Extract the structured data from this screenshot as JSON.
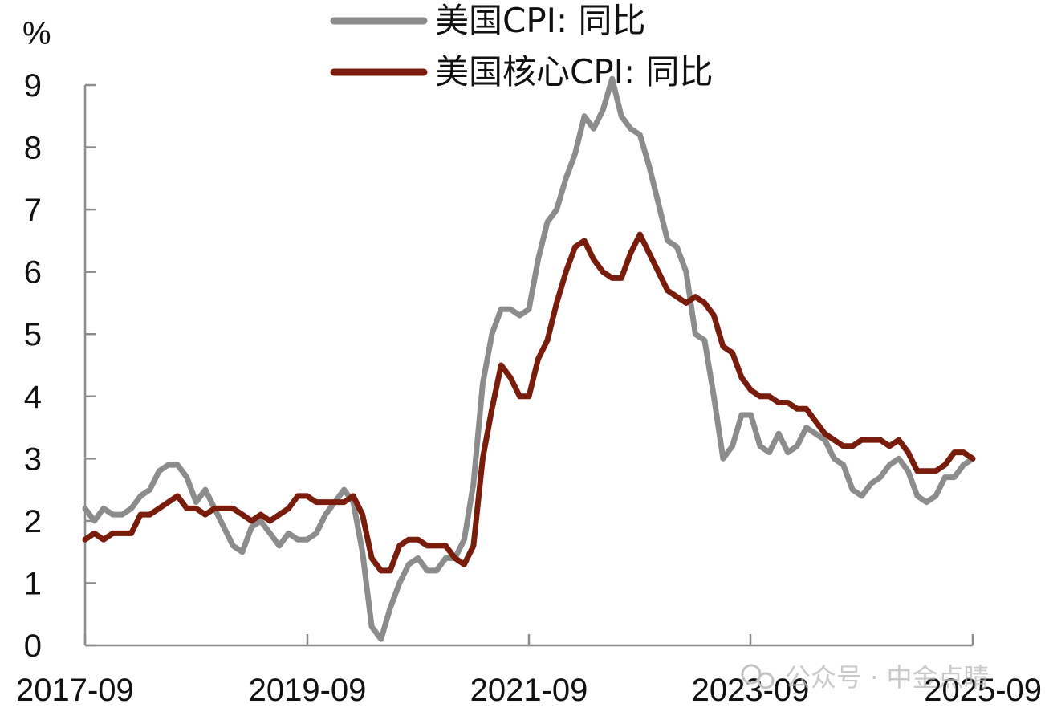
{
  "chart_data": {
    "type": "line",
    "title": "",
    "ylabel": "%",
    "ylim": [
      0,
      9
    ],
    "yticks": [
      "0",
      "1",
      "2",
      "3",
      "4",
      "5",
      "6",
      "7",
      "8",
      "9"
    ],
    "xtick_labels": [
      "2017-09",
      "2019-09",
      "2021-09",
      "2023-09",
      "2025-09"
    ],
    "x_start": "2017-09",
    "x_end": "2025-09",
    "grid": false,
    "legend_position": "top-center",
    "series": [
      {
        "name": "美国CPI: 同比",
        "color": "#8c8c8c",
        "values": [
          2.2,
          2.0,
          2.2,
          2.1,
          2.1,
          2.2,
          2.4,
          2.5,
          2.8,
          2.9,
          2.9,
          2.7,
          2.3,
          2.5,
          2.2,
          1.9,
          1.6,
          1.5,
          1.9,
          2.0,
          1.8,
          1.6,
          1.8,
          1.7,
          1.7,
          1.8,
          2.1,
          2.3,
          2.5,
          2.3,
          1.5,
          0.3,
          0.1,
          0.6,
          1.0,
          1.3,
          1.4,
          1.2,
          1.2,
          1.4,
          1.4,
          1.7,
          2.6,
          4.2,
          5.0,
          5.4,
          5.4,
          5.3,
          5.4,
          6.2,
          6.8,
          7.0,
          7.5,
          7.9,
          8.5,
          8.3,
          8.6,
          9.1,
          8.5,
          8.3,
          8.2,
          7.7,
          7.1,
          6.5,
          6.4,
          6.0,
          5.0,
          4.9,
          4.0,
          3.0,
          3.2,
          3.7,
          3.7,
          3.2,
          3.1,
          3.4,
          3.1,
          3.2,
          3.5,
          3.4,
          3.3,
          3.0,
          2.9,
          2.5,
          2.4,
          2.6,
          2.7,
          2.9,
          3.0,
          2.8,
          2.4,
          2.3,
          2.4,
          2.7,
          2.7,
          2.9,
          3.0
        ]
      },
      {
        "name": "美国核心CPI: 同比",
        "color": "#7a1c0c",
        "values": [
          1.7,
          1.8,
          1.7,
          1.8,
          1.8,
          1.8,
          2.1,
          2.1,
          2.2,
          2.3,
          2.4,
          2.2,
          2.2,
          2.1,
          2.2,
          2.2,
          2.2,
          2.1,
          2.0,
          2.1,
          2.0,
          2.1,
          2.2,
          2.4,
          2.4,
          2.3,
          2.3,
          2.3,
          2.3,
          2.4,
          2.1,
          1.4,
          1.2,
          1.2,
          1.6,
          1.7,
          1.7,
          1.6,
          1.6,
          1.6,
          1.4,
          1.3,
          1.6,
          3.0,
          3.8,
          4.5,
          4.3,
          4.0,
          4.0,
          4.6,
          4.9,
          5.5,
          6.0,
          6.4,
          6.5,
          6.2,
          6.0,
          5.9,
          5.9,
          6.3,
          6.6,
          6.3,
          6.0,
          5.7,
          5.6,
          5.5,
          5.6,
          5.5,
          5.3,
          4.8,
          4.7,
          4.3,
          4.1,
          4.0,
          4.0,
          3.9,
          3.9,
          3.8,
          3.8,
          3.6,
          3.4,
          3.3,
          3.2,
          3.2,
          3.3,
          3.3,
          3.3,
          3.2,
          3.3,
          3.1,
          2.8,
          2.8,
          2.8,
          2.9,
          3.1,
          3.1,
          3.0
        ]
      }
    ]
  },
  "watermark": "公众号 · 中金点睛"
}
